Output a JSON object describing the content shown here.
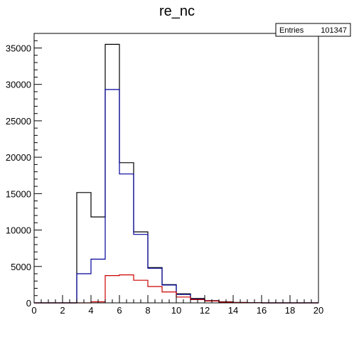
{
  "chart_data": {
    "type": "bar",
    "title": "re_nc",
    "xlabel": "",
    "ylabel": "",
    "xlim": [
      0,
      20
    ],
    "ylim": [
      0,
      37000
    ],
    "xticks": [
      0,
      2,
      4,
      6,
      8,
      10,
      12,
      14,
      16,
      18,
      20
    ],
    "yticks": [
      0,
      5000,
      10000,
      15000,
      20000,
      25000,
      30000,
      35000
    ],
    "bin_edges": [
      0,
      1,
      2,
      3,
      4,
      5,
      6,
      7,
      8,
      9,
      10,
      11,
      12,
      13,
      14,
      15,
      16,
      17,
      18,
      19,
      20
    ],
    "grid": false,
    "stats_box": {
      "label": "Entries",
      "value": "101347",
      "placement": "top-right"
    },
    "series": [
      {
        "color": "#000000",
        "values": [
          0,
          0,
          0,
          15150,
          11800,
          35500,
          19250,
          9750,
          4850,
          2500,
          1250,
          600,
          300,
          150,
          60,
          20,
          0,
          0,
          0,
          0
        ]
      },
      {
        "color": "#000099",
        "values": [
          0,
          0,
          0,
          4000,
          6000,
          29300,
          17700,
          9400,
          4750,
          2450,
          1150,
          500,
          250,
          100,
          40,
          10,
          0,
          0,
          0,
          0
        ]
      },
      {
        "color": "#cc0000",
        "values": [
          0,
          0,
          0,
          0,
          150,
          3750,
          3850,
          3100,
          2250,
          1500,
          800,
          450,
          250,
          100,
          40,
          10,
          0,
          0,
          0,
          0
        ]
      }
    ]
  }
}
